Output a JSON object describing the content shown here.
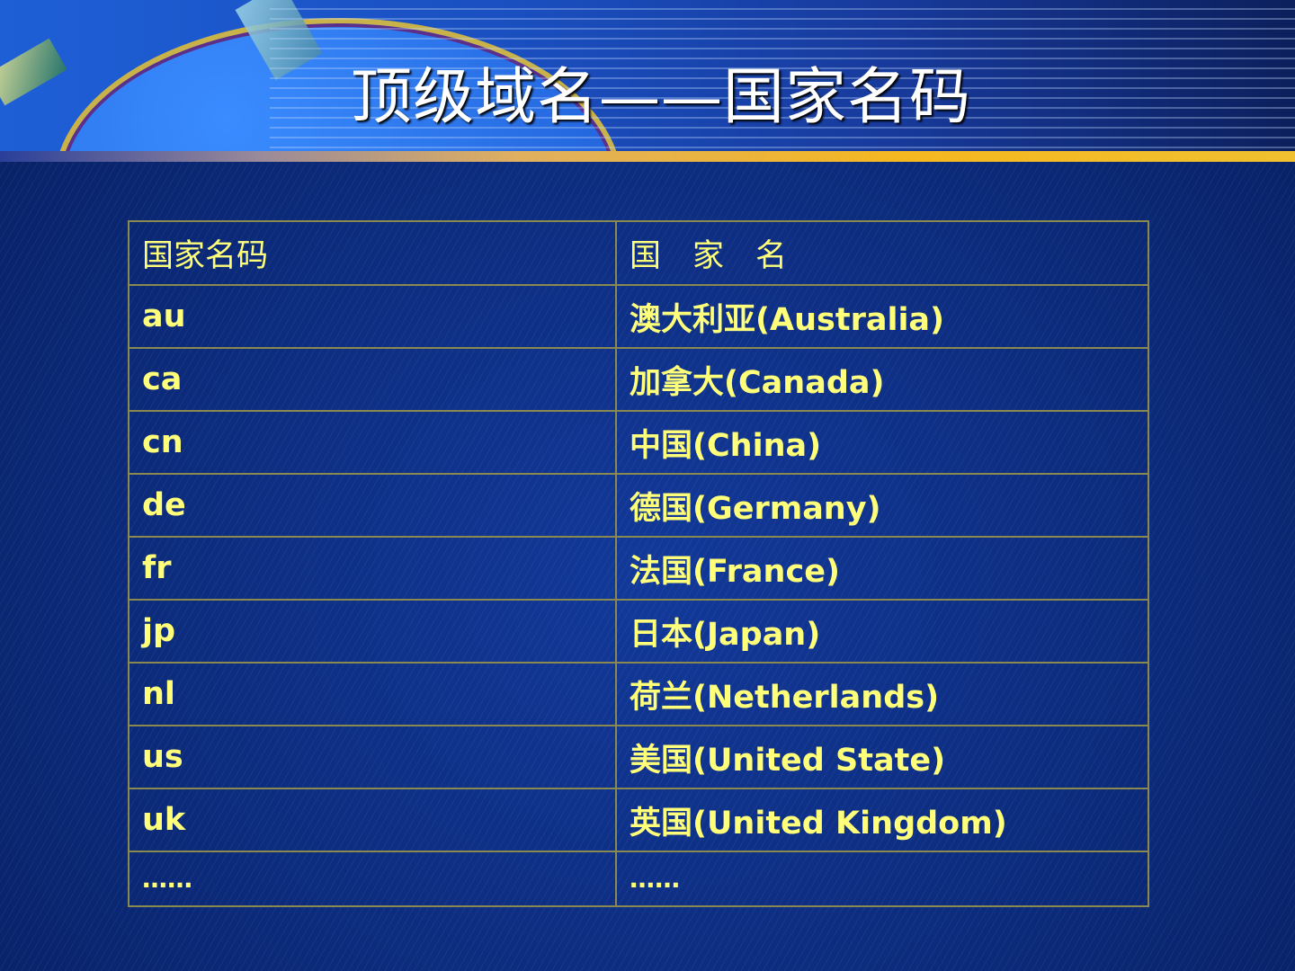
{
  "slide": {
    "title": "顶级域名——国家名码"
  },
  "table": {
    "headers": [
      "国家名码",
      "国　家　名"
    ],
    "rows": [
      {
        "code": "au",
        "country": "澳大利亚(Australia)"
      },
      {
        "code": "ca",
        "country": "加拿大(Canada)"
      },
      {
        "code": "cn",
        "country": "中国(China)"
      },
      {
        "code": "de",
        "country": "德国(Germany)"
      },
      {
        "code": "fr",
        "country": "法国(France)"
      },
      {
        "code": "jp",
        "country": "日本(Japan)"
      },
      {
        "code": "nl",
        "country": "荷兰(Netherlands)"
      },
      {
        "code": "us",
        "country": "美国(United State)"
      },
      {
        "code": "uk",
        "country": "英国(United Kingdom)"
      },
      {
        "code": "……",
        "country": "……"
      }
    ]
  },
  "colors": {
    "text": "#ffff7a",
    "background": "#0b2a80",
    "border": "#8a8a50",
    "title": "#ffffff"
  }
}
